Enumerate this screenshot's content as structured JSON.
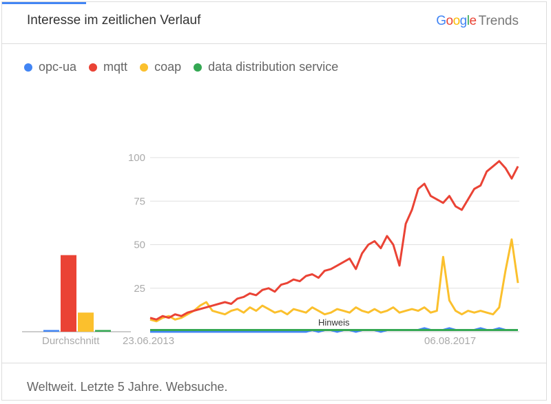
{
  "header": {
    "title": "Interesse im zeitlichen Verlauf",
    "brand_google": "Google",
    "brand_trends": "Trends"
  },
  "footer": {
    "text": "Weltweit. Letzte 5 Jahre. Websuche."
  },
  "colors": {
    "opc-ua": "#4285f4",
    "mqtt": "#ea4335",
    "coap": "#fbc02d",
    "data distribution service": "#34a853"
  },
  "chart_data": [
    {
      "type": "bar",
      "title": "",
      "xlabel": "Durchschnitt",
      "categories": [
        "opc-ua",
        "mqtt",
        "coap",
        "data distribution service"
      ],
      "values": [
        1,
        44,
        11,
        1
      ],
      "ylim": [
        0,
        100
      ]
    },
    {
      "type": "line",
      "title": "",
      "x_start": "2013-07",
      "x_end": "2018-06",
      "x_interval": "month",
      "x_tick_labels": [
        "23.06.2013",
        "06.08.2017"
      ],
      "y_ticks": [
        25,
        50,
        75,
        100
      ],
      "ylim": [
        0,
        100
      ],
      "grid": true,
      "legend": "top-left",
      "annotation": "Hinweis",
      "series": [
        {
          "name": "opc-ua",
          "values": [
            0,
            0,
            0,
            0,
            0,
            0,
            0,
            0,
            0,
            0,
            0,
            0,
            0,
            0,
            0,
            0,
            0,
            0,
            0,
            0,
            0,
            0,
            0,
            0,
            0,
            0,
            1,
            0,
            1,
            1,
            0,
            1,
            1,
            0,
            1,
            1,
            1,
            0,
            1,
            1,
            1,
            1,
            1,
            1,
            2,
            1,
            1,
            1,
            2,
            1,
            1,
            1,
            1,
            2,
            1,
            1,
            2,
            1,
            1,
            1
          ]
        },
        {
          "name": "mqtt",
          "values": [
            8,
            7,
            9,
            8,
            10,
            9,
            11,
            12,
            13,
            14,
            15,
            16,
            17,
            16,
            19,
            20,
            22,
            21,
            24,
            25,
            23,
            27,
            28,
            30,
            29,
            32,
            33,
            31,
            35,
            36,
            38,
            40,
            42,
            36,
            45,
            50,
            52,
            48,
            55,
            50,
            38,
            62,
            70,
            82,
            85,
            78,
            76,
            74,
            78,
            72,
            70,
            76,
            82,
            84,
            92,
            95,
            98,
            94,
            88,
            95
          ]
        },
        {
          "name": "coap",
          "values": [
            7,
            6,
            8,
            9,
            7,
            8,
            10,
            12,
            15,
            17,
            12,
            11,
            10,
            12,
            13,
            11,
            14,
            12,
            15,
            13,
            11,
            12,
            10,
            13,
            12,
            11,
            14,
            12,
            10,
            11,
            13,
            12,
            11,
            14,
            12,
            11,
            13,
            11,
            12,
            14,
            11,
            12,
            13,
            12,
            14,
            11,
            12,
            43,
            18,
            12,
            10,
            12,
            11,
            12,
            11,
            10,
            14,
            35,
            53,
            28
          ]
        },
        {
          "name": "data distribution service",
          "values": [
            1,
            1,
            1,
            1,
            1,
            1,
            1,
            1,
            1,
            1,
            1,
            1,
            1,
            1,
            1,
            1,
            1,
            1,
            1,
            1,
            1,
            1,
            1,
            1,
            1,
            1,
            1,
            1,
            1,
            1,
            1,
            1,
            1,
            1,
            1,
            1,
            1,
            1,
            1,
            1,
            1,
            1,
            1,
            1,
            1,
            1,
            1,
            1,
            1,
            1,
            1,
            1,
            1,
            1,
            1,
            1,
            1,
            1,
            1,
            1
          ]
        }
      ]
    }
  ]
}
